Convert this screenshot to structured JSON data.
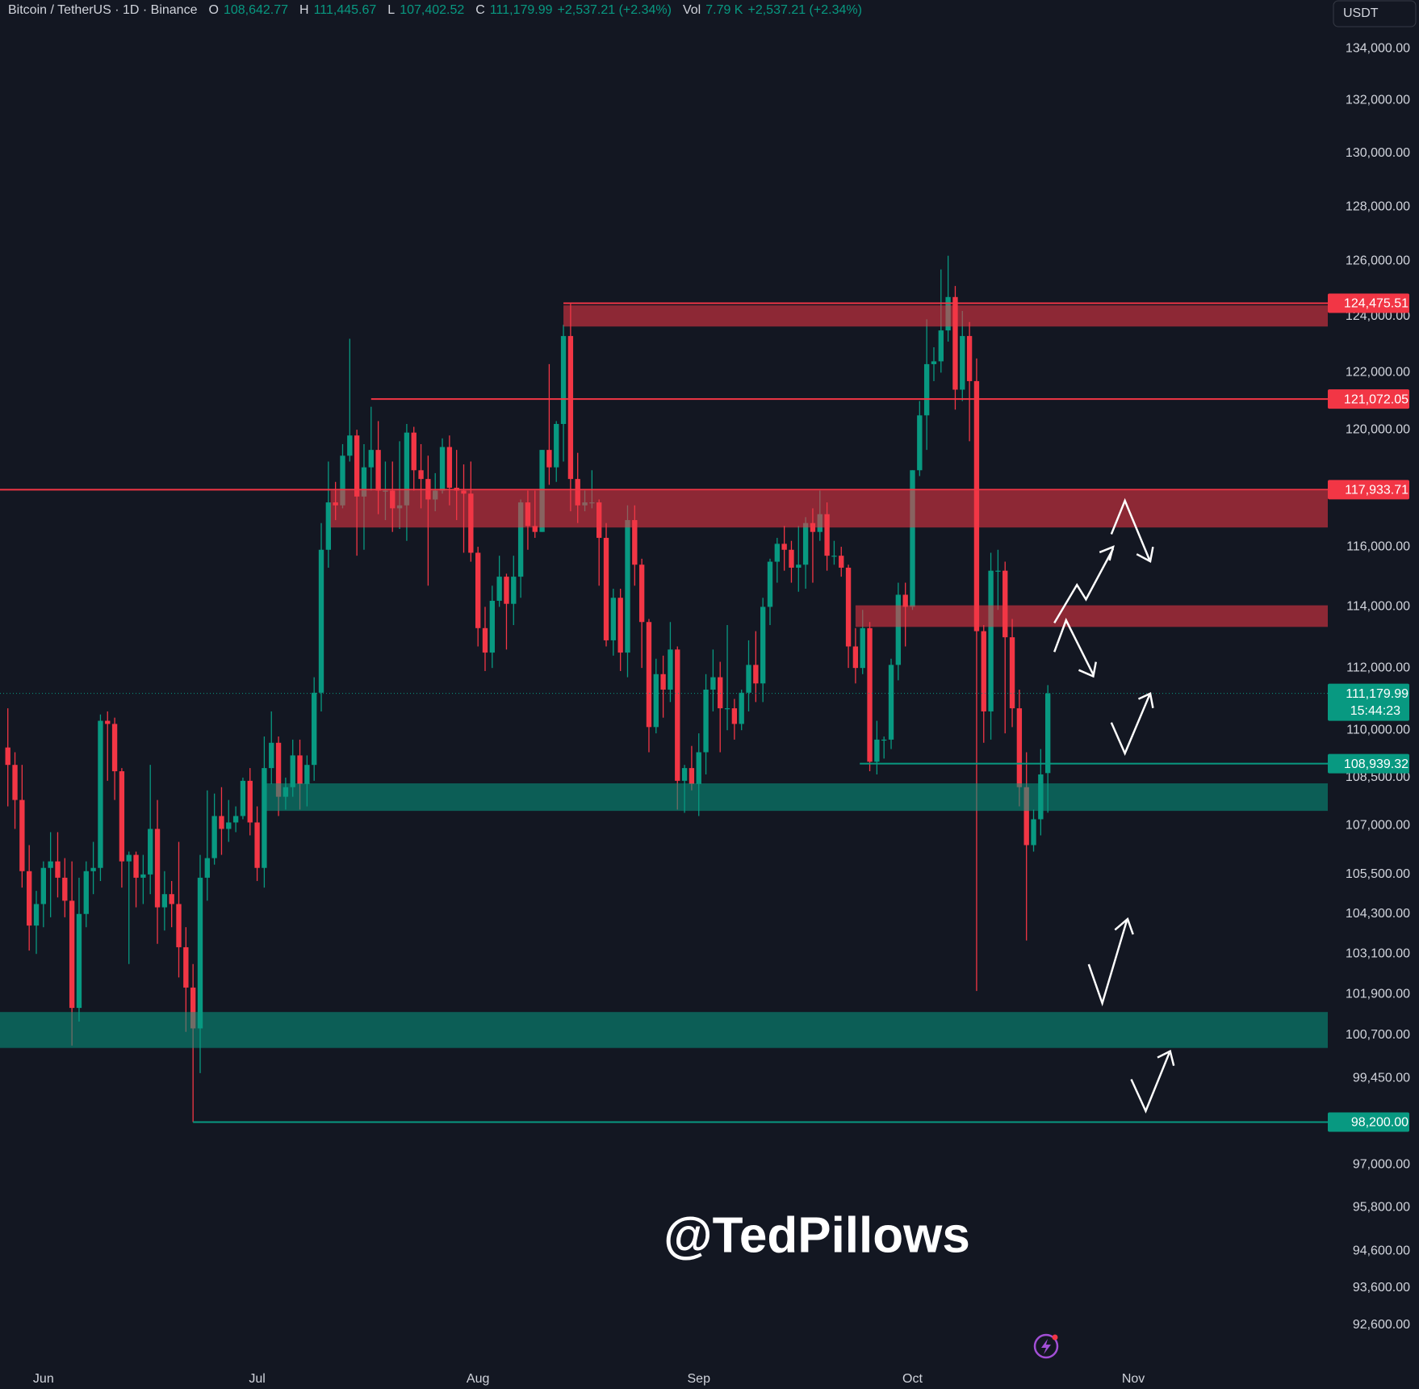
{
  "header": {
    "symbol": "Bitcoin / TetherUS · 1D · Binance",
    "items": [
      {
        "key": "O",
        "value": "108,642.77"
      },
      {
        "key": "H",
        "value": "111,445.67"
      },
      {
        "key": "L",
        "value": "107,402.52"
      },
      {
        "key": "C",
        "value": "111,179.99"
      }
    ],
    "change": "+2,537.21 (+2.34%)",
    "volume_key": "Vol",
    "volume": "7.79 K",
    "volume_change": "+2,537.21 (+2.34%)"
  },
  "chart_data": {
    "type": "candlestick",
    "open": [
      109450,
      108900,
      107800,
      105600,
      103950,
      104600,
      105700,
      105900,
      105400,
      104700,
      101500,
      104300,
      105600,
      105700,
      110300,
      110200,
      108700,
      105900,
      106100,
      105400,
      105500,
      106900,
      104500,
      104900,
      104600,
      103300,
      102100,
      100900,
      105400,
      106000,
      107300,
      106900,
      107100,
      107300,
      108400,
      107100,
      105700,
      108800,
      109600,
      107900,
      108200,
      109200,
      108300,
      108900,
      111200,
      115900,
      117500,
      117400,
      119100,
      119800,
      117700,
      118700,
      119300,
      117900,
      117900,
      117300,
      117400,
      119900,
      118600,
      118300,
      117600,
      117900,
      119400,
      118000,
      117900,
      117800,
      115800,
      113300,
      112500,
      114200,
      115000,
      114100,
      115000,
      117500,
      116700,
      116500,
      119300,
      118700,
      120200,
      123300,
      118300,
      117400,
      117500,
      117500,
      116300,
      112900,
      114300,
      112500,
      116900,
      115400,
      113500,
      110100,
      111800,
      111300,
      112600,
      108400,
      108800,
      108300,
      109300,
      111300,
      111700,
      110700,
      110700,
      110200,
      111200,
      112100,
      111500,
      114000,
      115500,
      116100,
      115900,
      115300,
      115400,
      116800,
      116500,
      117100,
      115700,
      115700,
      115300,
      112700,
      112000,
      113300,
      109000,
      109700,
      109700,
      112100,
      114400,
      114000,
      118600,
      120500,
      122300,
      122400,
      123500,
      124700,
      121400,
      123300,
      121700,
      113200,
      110600,
      115200,
      115200,
      113000,
      110700,
      108200,
      106400,
      107200,
      108642.77
    ],
    "high": [
      110700,
      109300,
      108900,
      106400,
      105000,
      105900,
      106800,
      106800,
      106000,
      105900,
      105400,
      105900,
      106500,
      110500,
      110600,
      110400,
      108800,
      106200,
      106200,
      106100,
      108900,
      107800,
      105600,
      105300,
      106500,
      103900,
      102800,
      106100,
      108100,
      108000,
      108200,
      107800,
      107600,
      108500,
      108800,
      107600,
      109800,
      110600,
      109800,
      108500,
      109700,
      109700,
      109200,
      111700,
      116800,
      118900,
      118200,
      119500,
      123200,
      120000,
      119500,
      120800,
      120300,
      118900,
      118900,
      119600,
      120200,
      120100,
      119500,
      119100,
      118500,
      119700,
      119800,
      119300,
      118800,
      118900,
      116000,
      114000,
      114700,
      115700,
      115100,
      115700,
      117600,
      117900,
      117900,
      119300,
      122300,
      120300,
      123700,
      124475.51,
      119200,
      117900,
      118600,
      117600,
      116800,
      114600,
      114600,
      117400,
      117400,
      115600,
      113600,
      112300,
      112400,
      113500,
      112700,
      108900,
      109500,
      109900,
      111800,
      112600,
      112200,
      113400,
      111000,
      111300,
      112900,
      113200,
      114300,
      115600,
      116300,
      116700,
      116200,
      116700,
      117000,
      117300,
      117900,
      117500,
      116200,
      116000,
      115400,
      113300,
      113900,
      113500,
      110300,
      109800,
      112300,
      114800,
      114800,
      118600,
      121000,
      123900,
      122900,
      125700,
      126200,
      125100,
      124200,
      123800,
      122500,
      113400,
      115800,
      115900,
      115500,
      113600,
      111300,
      109300,
      107500,
      109400,
      111445.67
    ],
    "low": [
      107600,
      106900,
      105100,
      103200,
      103100,
      103900,
      104200,
      104800,
      104200,
      100400,
      101100,
      103900,
      104900,
      105300,
      108400,
      107800,
      105100,
      102800,
      104500,
      104600,
      104900,
      103400,
      103800,
      103900,
      102400,
      100800,
      98200,
      99600,
      104700,
      105800,
      106100,
      106500,
      106800,
      107200,
      106700,
      105300,
      105100,
      108300,
      107300,
      107500,
      107900,
      107500,
      107600,
      108400,
      110600,
      115300,
      116900,
      117300,
      118900,
      115700,
      115900,
      117900,
      117100,
      116900,
      116500,
      116600,
      116200,
      117900,
      117300,
      114700,
      117200,
      117800,
      117400,
      116900,
      115800,
      115500,
      112700,
      111900,
      112000,
      114000,
      112600,
      113400,
      114300,
      115900,
      116300,
      116500,
      118100,
      118200,
      118900,
      117200,
      116800,
      117200,
      117300,
      114700,
      112700,
      112400,
      111900,
      111700,
      114700,
      112000,
      109300,
      109900,
      110400,
      110900,
      107500,
      107400,
      108100,
      107300,
      108600,
      110600,
      109300,
      110000,
      109700,
      110000,
      110600,
      110900,
      110900,
      113400,
      114800,
      115200,
      114800,
      114500,
      114600,
      114800,
      116200,
      115200,
      115400,
      115000,
      112000,
      111500,
      111800,
      108700,
      108600,
      109100,
      109400,
      111600,
      112700,
      113900,
      118400,
      119300,
      121700,
      122000,
      123100,
      120700,
      121000,
      119600,
      102000,
      109600,
      109700,
      113900,
      109900,
      110100,
      107600,
      103500,
      106200,
      106700,
      107402.52
    ],
    "close": [
      108900,
      107800,
      105600,
      103950,
      104600,
      105700,
      105900,
      105400,
      104700,
      101500,
      104300,
      105600,
      105700,
      110300,
      110200,
      108700,
      105900,
      106100,
      105400,
      105500,
      106900,
      104500,
      104900,
      104600,
      103300,
      102100,
      100900,
      105400,
      106000,
      107300,
      106900,
      107100,
      107300,
      108400,
      107100,
      105700,
      108800,
      109600,
      107900,
      108200,
      109200,
      108300,
      108900,
      111200,
      115900,
      117500,
      117400,
      119100,
      119800,
      117700,
      118700,
      119300,
      117900,
      117900,
      117300,
      117400,
      119900,
      118600,
      118300,
      117600,
      117900,
      119400,
      118000,
      117900,
      117800,
      115800,
      113300,
      112500,
      114200,
      115000,
      114100,
      115000,
      117500,
      116700,
      116500,
      119300,
      118700,
      120200,
      123300,
      118300,
      117400,
      117500,
      117500,
      116300,
      112900,
      114300,
      112500,
      116900,
      115400,
      113500,
      110100,
      111800,
      111300,
      112600,
      108400,
      108800,
      108300,
      109300,
      111300,
      111700,
      110700,
      110700,
      110200,
      111200,
      112100,
      111500,
      114000,
      115500,
      116100,
      115900,
      115300,
      115400,
      116800,
      116500,
      117100,
      115700,
      115700,
      115300,
      112700,
      112000,
      113300,
      109000,
      109700,
      109700,
      112100,
      114400,
      114000,
      118600,
      120500,
      122300,
      122400,
      123500,
      124700,
      121400,
      123300,
      121700,
      113200,
      110600,
      115200,
      115200,
      113000,
      110700,
      108200,
      106400,
      107200,
      108600,
      111179.99
    ],
    "up_color": "#089981",
    "down_color": "#f23645",
    "log_scale": true,
    "grid": false,
    "xlim": [
      -1.1,
      185.3
    ],
    "xticks": [
      {
        "value": 5,
        "label": "Jun"
      },
      {
        "value": 35,
        "label": "Jul"
      },
      {
        "value": 66,
        "label": "Aug"
      },
      {
        "value": 97,
        "label": "Sep"
      },
      {
        "value": 127,
        "label": "Oct"
      },
      {
        "value": 158,
        "label": "Nov"
      }
    ],
    "ylim": [
      91600,
      135900
    ],
    "yticks": [
      {
        "value": 134000,
        "label": "134,000.00"
      },
      {
        "value": 132000,
        "label": "132,000.00"
      },
      {
        "value": 130000,
        "label": "130,000.00"
      },
      {
        "value": 128000,
        "label": "128,000.00"
      },
      {
        "value": 126000,
        "label": "126,000.00"
      },
      {
        "value": 124000,
        "label": "124,000.00"
      },
      {
        "value": 122000,
        "label": "122,000.00"
      },
      {
        "value": 120000,
        "label": "120,000.00"
      },
      {
        "value": 116000,
        "label": "116,000.00"
      },
      {
        "value": 114000,
        "label": "114,000.00"
      },
      {
        "value": 112000,
        "label": "112,000.00"
      },
      {
        "value": 110000,
        "label": "110,000.00"
      },
      {
        "value": 108500,
        "label": "108,500.00"
      },
      {
        "value": 107000,
        "label": "107,000.00"
      },
      {
        "value": 105500,
        "label": "105,500.00"
      },
      {
        "value": 104300,
        "label": "104,300.00"
      },
      {
        "value": 103100,
        "label": "103,100.00"
      },
      {
        "value": 101900,
        "label": "101,900.00"
      },
      {
        "value": 100700,
        "label": "100,700.00"
      },
      {
        "value": 99450,
        "label": "99,450.00"
      },
      {
        "value": 97000,
        "label": "97,000.00"
      },
      {
        "value": 95800,
        "label": "95,800.00"
      },
      {
        "value": 94600,
        "label": "94,600.00"
      },
      {
        "value": 93600,
        "label": "93,600.00"
      },
      {
        "value": 92600,
        "label": "92,600.00"
      }
    ],
    "axis_unit": "USDT",
    "zones": [
      {
        "ymin": 123640,
        "ymax": 124400,
        "x_start": 78,
        "color": "#f23645"
      },
      {
        "ymin": 116650,
        "ymax": 117900,
        "x_start": 45.3,
        "color": "#f23645"
      },
      {
        "ymin": 113340,
        "ymax": 114050,
        "x_start": 119,
        "color": "#f23645"
      },
      {
        "ymin": 107460,
        "ymax": 108320,
        "x_start": 35.8,
        "color": "#089981"
      },
      {
        "ymin": 100330,
        "ymax": 101380,
        "color": "#089981"
      }
    ],
    "price_lines": [
      {
        "value": 124475.51,
        "label": "124,475.51",
        "x_start": 78,
        "color": "#f23645"
      },
      {
        "value": 121072.05,
        "label": "121,072.05",
        "x_start": 51,
        "color": "#f23645"
      },
      {
        "value": 117933.71,
        "label": "117,933.71",
        "color": "#f23645"
      },
      {
        "value": 108939.32,
        "label": "108,939.32",
        "x_start": 119.6,
        "color": "#089981"
      },
      {
        "value": 98200,
        "label": "98,200.00",
        "x_start": 26,
        "color": "#089981"
      }
    ],
    "last_price": {
      "value": 111179.99,
      "label": "111,179.99",
      "countdown": "15:44:23",
      "color": "#089981"
    },
    "watermark": "@TedPillows"
  }
}
